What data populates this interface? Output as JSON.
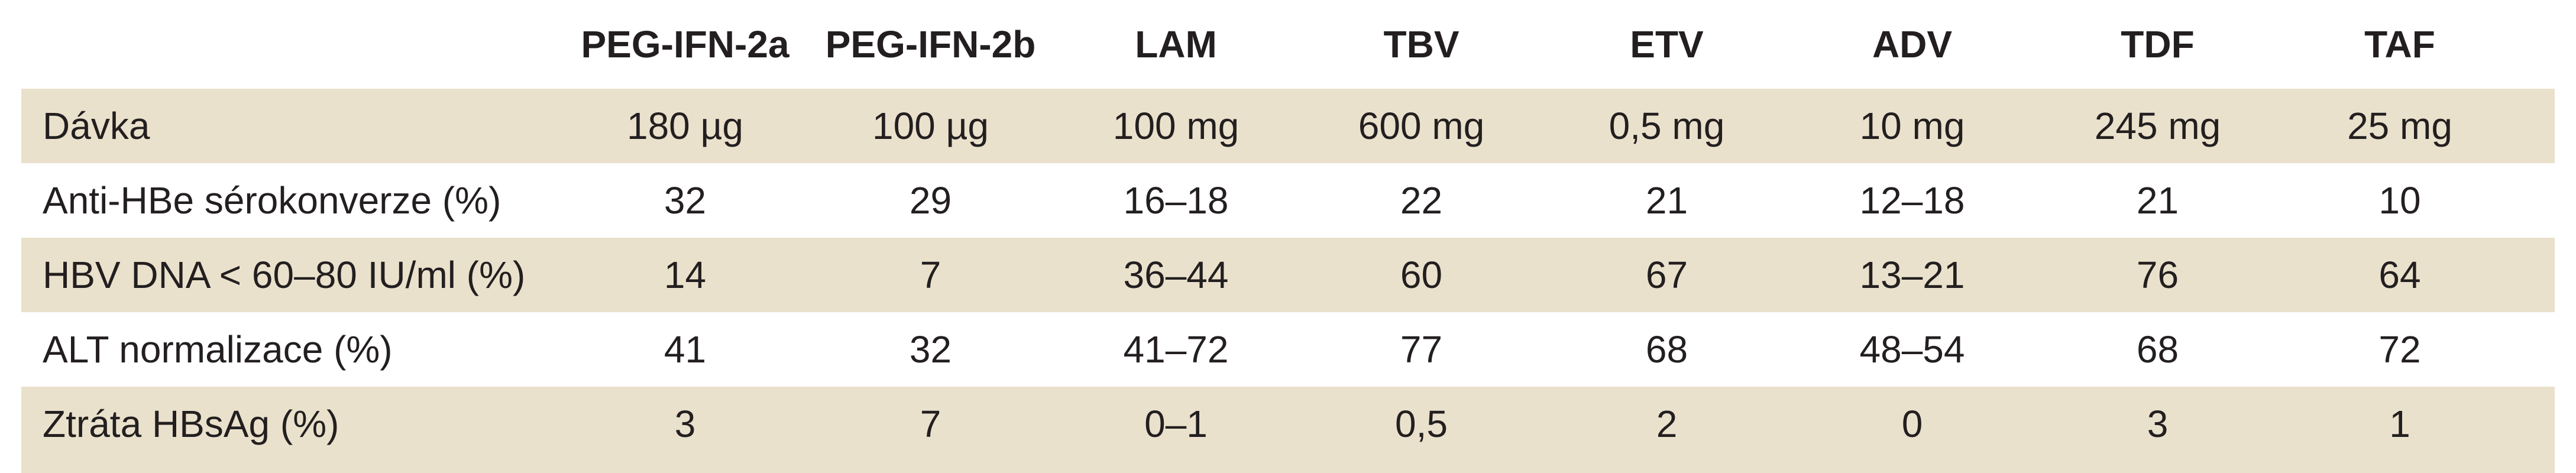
{
  "table": {
    "columns": [
      "",
      "PEG-IFN-2a",
      "PEG-IFN-2b",
      "LAM",
      "TBV",
      "ETV",
      "ADV",
      "TDF",
      "TAF"
    ],
    "rows": [
      {
        "label": "Dávka",
        "values": [
          "180 µg",
          "100 µg",
          "100 mg",
          "600 mg",
          "0,5 mg",
          "10 mg",
          "245 mg",
          "25 mg"
        ]
      },
      {
        "label": "Anti-HBe sérokonverze (%)",
        "values": [
          "32",
          "29",
          "16–18",
          "22",
          "21",
          "12–18",
          "21",
          "10"
        ]
      },
      {
        "label": "HBV DNA < 60–80 IU/ml (%)",
        "values": [
          "14",
          "7",
          "36–44",
          "60",
          "67",
          "13–21",
          "76",
          "64"
        ]
      },
      {
        "label": "ALT normalizace (%)",
        "values": [
          "41",
          "32",
          "41–72",
          "77",
          "68",
          "48–54",
          "68",
          "72"
        ]
      },
      {
        "label": "Ztráta HBsAg (%)",
        "values": [
          "3",
          "7",
          "0–1",
          "0,5",
          "2",
          "0",
          "3",
          "1"
        ]
      }
    ]
  },
  "colors": {
    "shaded_row": "#eae1cc",
    "text": "#231f20",
    "background": "#ffffff"
  }
}
